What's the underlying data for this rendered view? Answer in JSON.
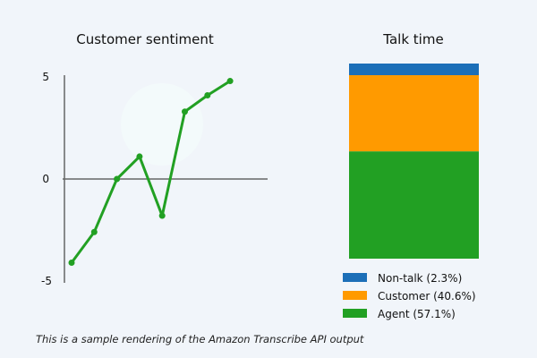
{
  "chart_data": [
    {
      "type": "line",
      "title": "Customer sentiment",
      "x": [
        1,
        2,
        3,
        4,
        5,
        6,
        7,
        8
      ],
      "values": [
        -4.1,
        -2.6,
        0,
        1.1,
        -1.8,
        3.3,
        4.1,
        4.8
      ],
      "ylim": [
        -5,
        5
      ],
      "yticks": [
        "5",
        "0",
        "-5"
      ],
      "color": "#22a023",
      "grid": false
    },
    {
      "type": "bar",
      "stacked": true,
      "title": "Talk time",
      "series": [
        {
          "name": "Non-talk (2.3%)",
          "value": 2.3,
          "color": "#1c6fb8"
        },
        {
          "name": "Customer (40.6%)",
          "value": 40.6,
          "color": "#ff9a00"
        },
        {
          "name": "Agent (57.1%)",
          "value": 57.1,
          "color": "#22a023"
        }
      ],
      "legend": "bottom"
    }
  ],
  "footnote": "This is a sample rendering of the Amazon Transcribe API output"
}
